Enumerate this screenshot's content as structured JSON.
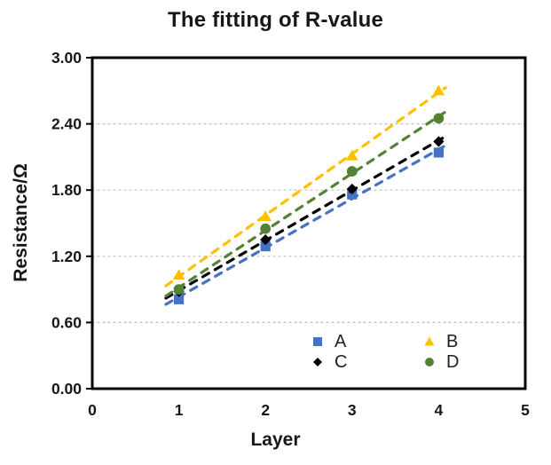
{
  "chart_data": {
    "type": "scatter",
    "title": "The fitting of R-value",
    "xlabel": "Layer",
    "ylabel": "Resistance/Ω",
    "xlim": [
      0,
      5
    ],
    "ylim": [
      0,
      3
    ],
    "xtick_values": [
      0,
      1,
      2,
      3,
      4,
      5
    ],
    "xtick_labels": [
      "0",
      "1",
      "2",
      "3",
      "4",
      "5"
    ],
    "ytick_values": [
      0,
      0.6,
      1.2,
      1.8,
      2.4,
      3.0
    ],
    "ytick_labels": [
      "0.00",
      "0.60",
      "1.20",
      "1.80",
      "2.40",
      "3.00"
    ],
    "grid": "horizontal-dashed",
    "x": [
      1,
      2,
      3,
      4
    ],
    "series": [
      {
        "name": "A",
        "marker": "square",
        "color": "#4472C4",
        "values": [
          0.81,
          1.29,
          1.76,
          2.14
        ],
        "trendline": "dashed"
      },
      {
        "name": "B",
        "marker": "triangle",
        "color": "#FFC000",
        "values": [
          1.03,
          1.56,
          2.11,
          2.7
        ],
        "trendline": "dashed"
      },
      {
        "name": "C",
        "marker": "diamond",
        "color": "#000000",
        "values": [
          0.88,
          1.35,
          1.81,
          2.24
        ],
        "trendline": "dashed"
      },
      {
        "name": "D",
        "marker": "circle",
        "color": "#548235",
        "values": [
          0.9,
          1.45,
          1.97,
          2.45
        ],
        "trendline": "dashed"
      }
    ],
    "trend_x_range": [
      0.85,
      4.08
    ],
    "legend_position": "inside-bottom",
    "legend_order": [
      "A",
      "B",
      "C",
      "D"
    ]
  },
  "colors": {
    "axis": "#000000",
    "grid": "#BFBFBF",
    "tick_text": "#171717",
    "background": "#FFFFFF"
  }
}
